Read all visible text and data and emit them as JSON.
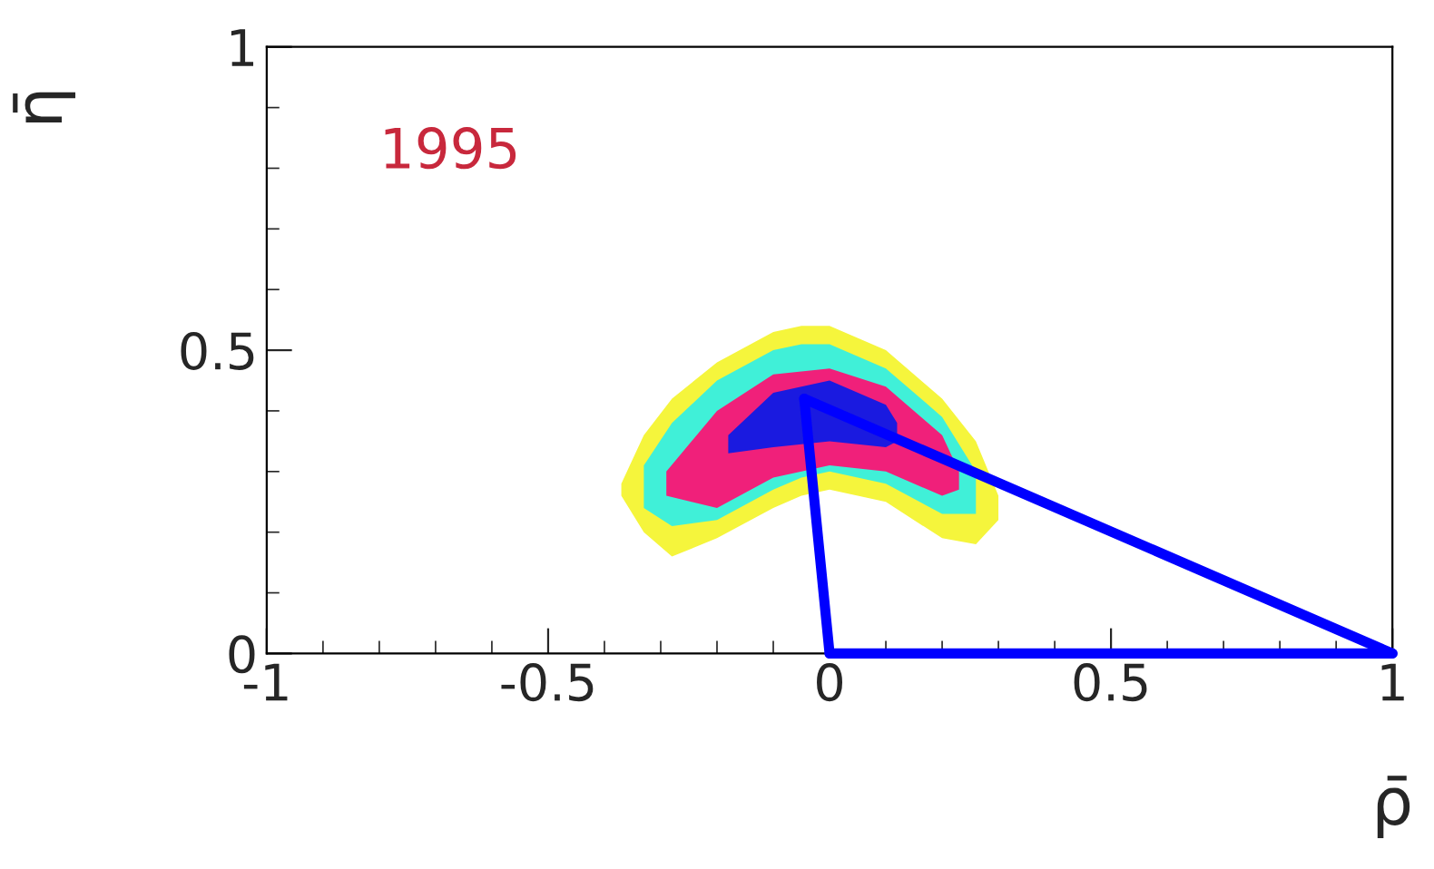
{
  "chart_data": {
    "type": "line",
    "xlabel": "ρ̄",
    "ylabel": "η̄",
    "annotations": [
      "1995"
    ],
    "xlim": [
      -1,
      1
    ],
    "ylim": [
      0,
      1
    ],
    "xticks": [
      -1,
      -0.5,
      0,
      0.5,
      1
    ],
    "yticks": [
      0,
      0.5,
      1
    ],
    "grid": false,
    "legend": false,
    "series": [
      {
        "type": "area",
        "color": "#f5f53c",
        "x": [
          -0.37,
          -0.33,
          -0.28,
          -0.2,
          -0.1,
          -0.05,
          0.0,
          0.1,
          0.2,
          0.26,
          0.3
        ],
        "values": [
          null,
          null,
          null,
          null,
          null,
          null,
          null,
          null,
          null,
          null,
          null
        ],
        "lower": [
          0.26,
          0.2,
          0.16,
          0.19,
          0.24,
          0.26,
          0.27,
          0.25,
          0.19,
          0.18,
          0.22
        ],
        "upper": [
          0.28,
          0.36,
          0.42,
          0.48,
          0.53,
          0.54,
          0.54,
          0.5,
          0.42,
          0.35,
          0.26
        ]
      },
      {
        "type": "area",
        "color": "#40f0d8",
        "x": [
          -0.33,
          -0.28,
          -0.2,
          -0.1,
          -0.05,
          0.0,
          0.1,
          0.2,
          0.26
        ],
        "values": [
          null,
          null,
          null,
          null,
          null,
          null,
          null,
          null,
          null
        ],
        "lower": [
          0.24,
          0.21,
          0.22,
          0.27,
          0.29,
          0.3,
          0.28,
          0.23,
          0.23
        ],
        "upper": [
          0.31,
          0.38,
          0.45,
          0.5,
          0.51,
          0.51,
          0.47,
          0.39,
          0.3
        ]
      },
      {
        "type": "area",
        "color": "#f0207a",
        "x": [
          -0.29,
          -0.2,
          -0.1,
          0.0,
          0.1,
          0.2,
          0.23
        ],
        "values": [
          null,
          null,
          null,
          null,
          null,
          null,
          null
        ],
        "lower": [
          0.26,
          0.24,
          0.29,
          0.31,
          0.3,
          0.26,
          0.27
        ],
        "upper": [
          0.3,
          0.4,
          0.46,
          0.47,
          0.44,
          0.36,
          0.3
        ]
      },
      {
        "type": "area",
        "color": "#1a1ae0",
        "x": [
          -0.18,
          -0.1,
          0.0,
          0.1,
          0.12
        ],
        "values": [
          null,
          null,
          null,
          null,
          null
        ],
        "lower": [
          0.33,
          0.34,
          0.35,
          0.34,
          0.35
        ],
        "upper": [
          0.36,
          0.43,
          0.45,
          0.41,
          0.38
        ]
      },
      {
        "type": "line",
        "color": "#0000ff",
        "x": [
          0.0,
          1.0
        ],
        "values": [
          0.0,
          0.0
        ]
      },
      {
        "type": "line",
        "color": "#0000ff",
        "x": [
          -0.045,
          1.0
        ],
        "values": [
          0.42,
          0.0
        ]
      },
      {
        "color": "#0000ff",
        "x": [
          -0.045,
          0.0
        ],
        "values": [
          0.42,
          0.0
        ]
      }
    ]
  }
}
